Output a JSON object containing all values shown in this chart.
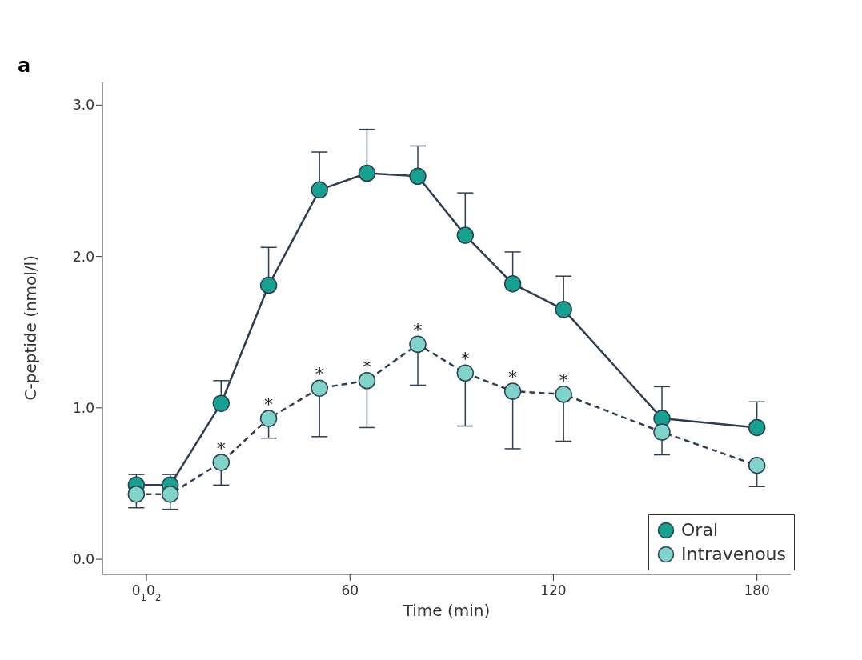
{
  "chart_data": {
    "type": "line",
    "title": "a",
    "xlabel": "Time (min)",
    "ylabel": "C-peptide (nmol/l)",
    "x": [
      -3,
      7,
      22,
      36,
      51,
      65,
      80,
      94,
      108,
      123,
      152,
      180
    ],
    "xlim": [
      -13,
      190
    ],
    "xticks": [
      {
        "value": 0,
        "label": "0$_{1}$0$_{2}$"
      },
      60,
      120,
      180
    ],
    "ylim": [
      -0.1,
      3.15
    ],
    "yticks": [
      {
        "value": 0,
        "label": "0.0"
      },
      {
        "value": 1,
        "label": "1.0"
      },
      {
        "value": 2,
        "label": "2.0"
      },
      {
        "value": 3,
        "label": "3.0"
      }
    ],
    "series": [
      {
        "name": "Oral",
        "color": "#16a090",
        "line_style": "solid",
        "values": [
          0.49,
          0.49,
          1.03,
          1.81,
          2.44,
          2.55,
          2.53,
          2.14,
          1.82,
          1.65,
          0.93,
          0.87
        ],
        "errors": [
          [
            0.49,
            0.56
          ],
          [
            0.49,
            0.56
          ],
          [
            1.03,
            1.18
          ],
          [
            1.81,
            2.06
          ],
          [
            2.44,
            2.69
          ],
          [
            2.55,
            2.84
          ],
          [
            2.53,
            2.73
          ],
          [
            2.14,
            2.42
          ],
          [
            1.82,
            2.03
          ],
          [
            1.65,
            1.87
          ],
          [
            0.93,
            1.14
          ],
          [
            0.87,
            1.04
          ]
        ]
      },
      {
        "name": "Intravenous",
        "color": "#7fd3c9",
        "line_style": "dashed",
        "values": [
          0.43,
          0.43,
          0.64,
          0.93,
          1.13,
          1.18,
          1.42,
          1.23,
          1.11,
          1.09,
          0.84,
          0.62
        ],
        "errors": [
          [
            0.34,
            0.43
          ],
          [
            0.33,
            0.43
          ],
          [
            0.49,
            0.64
          ],
          [
            0.8,
            0.93
          ],
          [
            0.81,
            1.13
          ],
          [
            0.87,
            1.18
          ],
          [
            1.15,
            1.42
          ],
          [
            0.88,
            1.23
          ],
          [
            0.73,
            1.11
          ],
          [
            0.78,
            1.09
          ],
          [
            0.69,
            0.84
          ],
          [
            0.48,
            0.62
          ]
        ]
      }
    ],
    "annotations": [
      {
        "text": "*",
        "x": 22,
        "y": 0.64
      },
      {
        "text": "*",
        "x": 36,
        "y": 0.93
      },
      {
        "text": "*",
        "x": 51,
        "y": 1.13
      },
      {
        "text": "*",
        "x": 65,
        "y": 1.18
      },
      {
        "text": "*",
        "x": 80,
        "y": 1.42
      },
      {
        "text": "*",
        "x": 94,
        "y": 1.23
      },
      {
        "text": "*",
        "x": 108,
        "y": 1.11
      },
      {
        "text": "*",
        "x": 123,
        "y": 1.09
      }
    ],
    "marker": "circle",
    "grid": false,
    "legend": "bottom right"
  }
}
